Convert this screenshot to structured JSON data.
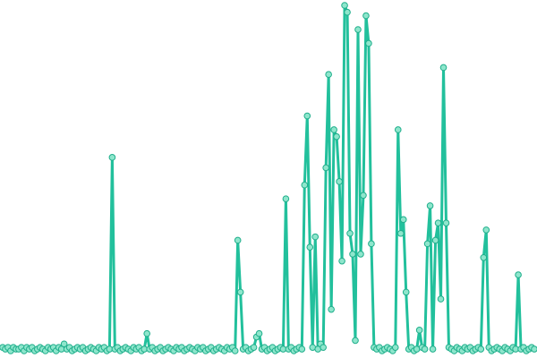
{
  "chart_data": {
    "type": "line",
    "color": "#22c09c",
    "marker_fill": "#8ee6cc",
    "marker_stroke": "#1fae8b",
    "xlim": [
      0,
      199
    ],
    "ylim": [
      0,
      100
    ],
    "x": [
      0,
      1,
      2,
      3,
      4,
      5,
      6,
      7,
      8,
      9,
      10,
      11,
      12,
      13,
      14,
      15,
      16,
      17,
      18,
      19,
      20,
      21,
      22,
      23,
      24,
      25,
      26,
      27,
      28,
      29,
      30,
      31,
      32,
      33,
      34,
      35,
      36,
      37,
      38,
      39,
      40,
      41,
      42,
      43,
      44,
      45,
      46,
      47,
      48,
      49,
      50,
      51,
      52,
      53,
      54,
      55,
      56,
      57,
      58,
      59,
      60,
      61,
      62,
      63,
      64,
      65,
      66,
      67,
      68,
      69,
      70,
      71,
      72,
      73,
      74,
      75,
      76,
      77,
      78,
      79,
      80,
      81,
      82,
      83,
      84,
      85,
      86,
      87,
      88,
      89,
      90,
      91,
      92,
      93,
      94,
      95,
      96,
      97,
      98,
      99,
      100,
      101,
      102,
      103,
      104,
      105,
      106,
      107,
      108,
      109,
      110,
      111,
      112,
      113,
      114,
      115,
      116,
      117,
      118,
      119,
      120,
      121,
      122,
      123,
      124,
      125,
      126,
      127,
      128,
      129,
      130,
      131,
      132,
      133,
      134,
      135,
      136,
      137,
      138,
      139,
      140,
      141,
      142,
      143,
      144,
      145,
      146,
      147,
      148,
      149,
      150,
      151,
      152,
      153,
      154,
      155,
      156,
      157,
      158,
      159,
      160,
      161,
      162,
      163,
      164,
      165,
      166,
      167,
      168,
      169,
      170,
      171,
      172,
      173,
      174,
      175,
      176,
      177,
      178,
      179,
      180,
      181,
      182,
      183,
      184,
      185,
      186,
      187,
      188,
      189,
      190,
      191,
      192,
      193,
      194,
      195,
      196,
      197,
      198,
      199
    ],
    "values": [
      1,
      0.5,
      1,
      0,
      1,
      0.5,
      0.5,
      1,
      0,
      1,
      0.5,
      1,
      0,
      0.5,
      1,
      0.5,
      0,
      1,
      0.5,
      1,
      0,
      1,
      0.5,
      2,
      0.5,
      1,
      0,
      0.5,
      1,
      0.5,
      1,
      0,
      0.5,
      1,
      0.5,
      0,
      1,
      0.5,
      1,
      0,
      0.5,
      56,
      0.5,
      1,
      0,
      0.5,
      1,
      0.5,
      0,
      1,
      0.5,
      1,
      0,
      0.5,
      5,
      0.5,
      1,
      0,
      0.5,
      1,
      0,
      0.5,
      1,
      0.5,
      0,
      1,
      0.5,
      1,
      0,
      0.5,
      1,
      0.5,
      0,
      1,
      0.5,
      1,
      0,
      0.5,
      1,
      0,
      0.5,
      1,
      0.5,
      0,
      1,
      0.5,
      1,
      0,
      32,
      17,
      0.5,
      1,
      0,
      0.5,
      1,
      4,
      5,
      0.5,
      1,
      0,
      0.5,
      1,
      0,
      0.5,
      1,
      0.5,
      44,
      0.5,
      1,
      0,
      0.5,
      1,
      0.5,
      48,
      68,
      30,
      1,
      33,
      0.5,
      2,
      1,
      53,
      80,
      12,
      64,
      62,
      49,
      26,
      100,
      98,
      34,
      28,
      3,
      93,
      28,
      45,
      97,
      89,
      31,
      1,
      0.5,
      1,
      0,
      0.5,
      1,
      0.5,
      0,
      1,
      64,
      34,
      38,
      17,
      0.5,
      1,
      0,
      0.5,
      6,
      1,
      0.5,
      31,
      42,
      0.5,
      32,
      37,
      15,
      82,
      37,
      1,
      0.5,
      0,
      1,
      0.5,
      0,
      1,
      0.5,
      1,
      0,
      0.5,
      1,
      0.5,
      27,
      35,
      1,
      0,
      0.5,
      1,
      0.5,
      0,
      1,
      0.5,
      0,
      1,
      0.5,
      22,
      0.5,
      1,
      0,
      0.5,
      1,
      0.5
    ]
  }
}
